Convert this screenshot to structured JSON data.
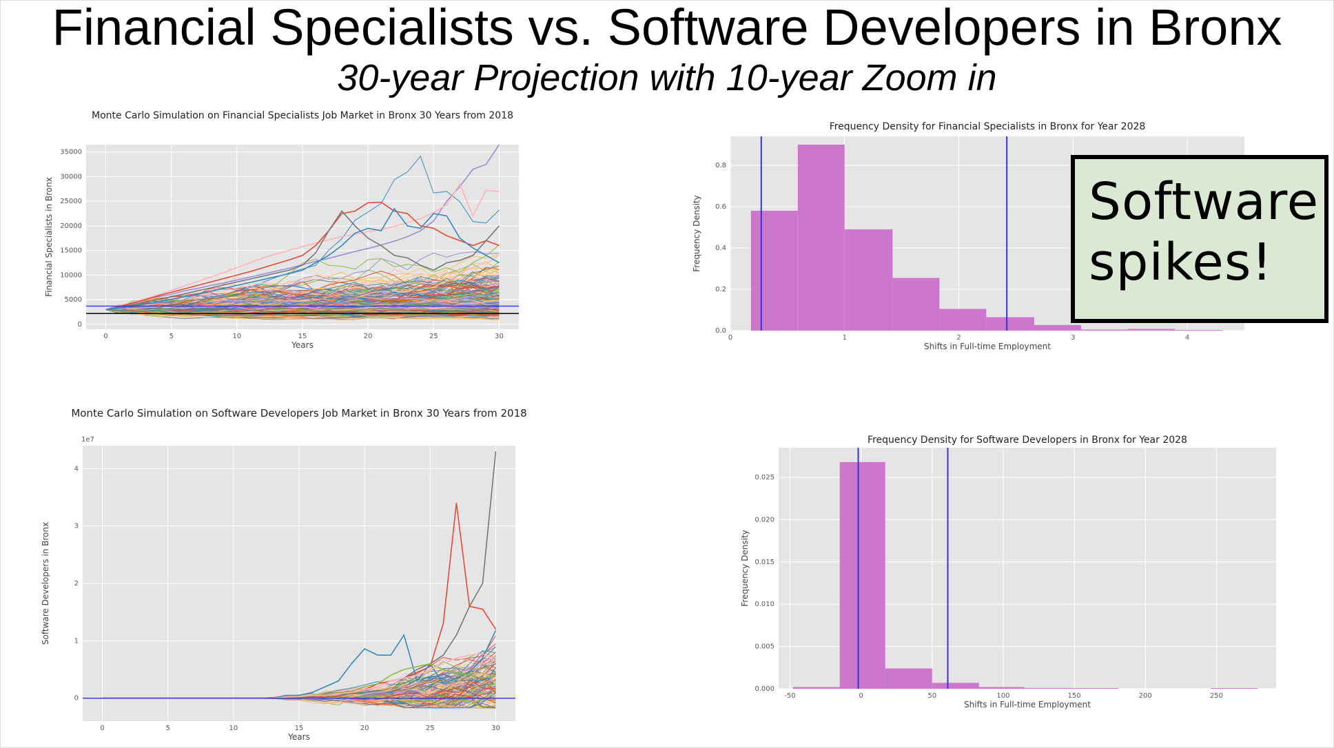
{
  "slide": {
    "title": "Financial Specialists vs. Software Developers in Bronx",
    "subtitle": "30-year Projection with 10-year Zoom in",
    "callout": "Software spikes!"
  },
  "colors": {
    "panel_bg": "#e5e5e5",
    "grid": "#ffffff",
    "hist_fill": "#cc77cc",
    "vline": "#3333dd",
    "callout_bg": "#dbe8d3",
    "series_palette": [
      "#e24a33",
      "#348abd",
      "#988ed5",
      "#777777",
      "#fbc15e",
      "#8eba42",
      "#ffb5b8"
    ]
  },
  "chart_data": [
    {
      "id": "fin-line",
      "type": "line",
      "title": "Monte Carlo Simulation on Financial Specialists Job Market in Bronx 30 Years from 2018",
      "xlabel": "Years",
      "ylabel": "Financial Specialists in Bronx",
      "xlim": [
        -1.5,
        31.5
      ],
      "ylim": [
        -1000,
        36500
      ],
      "xticks": [
        0,
        5,
        10,
        15,
        20,
        25,
        30
      ],
      "yticks": [
        0,
        5000,
        10000,
        15000,
        20000,
        25000,
        30000,
        35000
      ],
      "ytick_labels": [
        "0",
        "5000",
        "10000",
        "15000",
        "20000",
        "25000",
        "30000",
        "35000"
      ],
      "start_value": 3000,
      "simulated_series_count": 200,
      "highlight_series": [
        {
          "color": "#988ed5",
          "values": [
            3000,
            3500,
            4200,
            5000,
            5600,
            6100,
            6800,
            7300,
            7900,
            8400,
            9000,
            9600,
            10200,
            10800,
            11400,
            12100,
            12800,
            13400,
            14100,
            14800,
            15400,
            16100,
            16900,
            17800,
            19000,
            21000,
            25000,
            28000,
            31500,
            32500,
            36500
          ]
        },
        {
          "color": "#ffb5b8",
          "values": [
            3000,
            3700,
            4400,
            5200,
            6000,
            6900,
            7800,
            8700,
            9600,
            10500,
            11500,
            12500,
            13500,
            14300,
            15000,
            15800,
            16500,
            17200,
            17800,
            18300,
            18800,
            19300,
            19900,
            20600,
            21500,
            22700,
            24300,
            28500,
            22000,
            27200,
            27000
          ]
        },
        {
          "color": "#e24a33",
          "values": [
            3000,
            3600,
            4300,
            5000,
            5800,
            6500,
            7200,
            7900,
            8600,
            9300,
            10000,
            10700,
            11500,
            12300,
            13100,
            14000,
            16000,
            19000,
            22500,
            23000,
            24700,
            24800,
            23000,
            22500,
            20000,
            19500,
            18000,
            17000,
            16000,
            17000,
            16000
          ]
        },
        {
          "color": "#777777",
          "values": [
            3000,
            3400,
            3900,
            4400,
            5000,
            5600,
            6200,
            6800,
            7400,
            8000,
            8600,
            9200,
            9800,
            10400,
            11000,
            12000,
            14500,
            19000,
            23000,
            20000,
            17500,
            16000,
            14000,
            13500,
            12000,
            11000,
            12500,
            13000,
            14000,
            17000,
            20000
          ]
        },
        {
          "color": "#348abd",
          "values": [
            3000,
            3300,
            3700,
            4100,
            4600,
            5100,
            5600,
            6100,
            6700,
            7300,
            7900,
            8500,
            9100,
            9700,
            10300,
            11000,
            12500,
            14000,
            16000,
            18500,
            19500,
            19000,
            23500,
            20000,
            19500,
            22500,
            22000,
            17500,
            15500,
            14000,
            12500
          ]
        }
      ],
      "reference_lines": [
        {
          "value": 3700,
          "color": "#3333dd"
        },
        {
          "value": 2200,
          "color": "#000000"
        }
      ]
    },
    {
      "id": "fin-hist",
      "type": "histogram",
      "title": "Frequency Density for Financial Specialists in Bronx for Year 2028",
      "xlabel": "Shifts in Full-time Employment",
      "ylabel": "Frequency Density",
      "xlim": [
        0,
        4.5
      ],
      "ylim": [
        0,
        0.94
      ],
      "xticks": [
        0,
        1,
        2,
        3,
        4
      ],
      "yticks": [
        0.0,
        0.2,
        0.4,
        0.6,
        0.8
      ],
      "ytick_labels": [
        "0.0",
        "0.2",
        "0.4",
        "0.6",
        "0.8"
      ],
      "bins": [
        0.18,
        0.59,
        1.0,
        1.42,
        1.83,
        2.24,
        2.66,
        3.07,
        3.48,
        3.89,
        4.31
      ],
      "values": [
        0.58,
        0.9,
        0.49,
        0.255,
        0.105,
        0.065,
        0.027,
        0.005,
        0.008,
        0.003
      ],
      "vlines": [
        0.27,
        2.42
      ]
    },
    {
      "id": "soft-line",
      "type": "line",
      "title": "Monte Carlo Simulation on Software Developers Job Market in Bronx 30 Years from 2018",
      "xlabel": "Years",
      "ylabel": "Software Developers in Bronx",
      "scale_label": "1e7",
      "xlim": [
        -1.5,
        31.5
      ],
      "ylim": [
        -0.4,
        4.4
      ],
      "xticks": [
        0,
        5,
        10,
        15,
        20,
        25,
        30
      ],
      "yticks": [
        0,
        1,
        2,
        3,
        4
      ],
      "ytick_labels": [
        "0",
        "1",
        "2",
        "3",
        "4"
      ],
      "simulated_series_count": 120,
      "highlight_series": [
        {
          "color": "#777777",
          "values": [
            0,
            0,
            0,
            0,
            0,
            0,
            0,
            0,
            0,
            0,
            0,
            0,
            0,
            0,
            0,
            0.02,
            0.05,
            0.05,
            0.08,
            0.1,
            0.15,
            0.2,
            0.3,
            0.35,
            0.5,
            0.6,
            0.75,
            1.1,
            1.6,
            2.0,
            4.3
          ]
        },
        {
          "color": "#e24a33",
          "values": [
            0,
            0,
            0,
            0,
            0,
            0,
            0,
            0,
            0,
            0,
            0,
            0,
            0,
            0,
            0,
            0.02,
            0.05,
            0.08,
            0.1,
            0.1,
            0.15,
            0.25,
            0.3,
            0.35,
            0.45,
            0.55,
            1.3,
            3.4,
            1.6,
            1.55,
            1.2
          ]
        },
        {
          "color": "#348abd",
          "values": [
            0,
            0,
            0,
            0,
            0,
            0,
            0,
            0,
            0,
            0,
            0,
            0,
            0,
            0,
            0.05,
            0.05,
            0.1,
            0.2,
            0.3,
            0.6,
            0.86,
            0.75,
            0.75,
            1.1,
            0.3,
            0.6,
            0.25,
            0.35,
            0.45,
            0.7,
            1.18
          ]
        },
        {
          "color": "#8eba42",
          "values": [
            0,
            0,
            0,
            0,
            0,
            0,
            0,
            0,
            0,
            0,
            0,
            0,
            0,
            0,
            0.02,
            0.02,
            0.05,
            0.08,
            0.1,
            0.12,
            0.2,
            0.25,
            0.4,
            0.5,
            0.55,
            0.6,
            0.5,
            0.45,
            0.4,
            0.35,
            0.4
          ]
        },
        {
          "color": "#ffb5b8",
          "values": [
            0,
            0,
            0,
            0,
            0,
            0,
            0,
            0,
            0,
            0,
            0,
            0,
            0,
            0,
            0.02,
            0.03,
            0.05,
            0.05,
            0.08,
            0.1,
            0.15,
            0.2,
            0.3,
            0.35,
            0.4,
            0.5,
            0.6,
            0.7,
            0.75,
            0.78,
            0.65
          ]
        }
      ],
      "reference_lines": [
        {
          "value": 0,
          "color": "#3333dd"
        }
      ]
    },
    {
      "id": "soft-hist",
      "type": "histogram",
      "title": "Frequency Density for Software Developers in Bronx for Year 2028",
      "xlabel": "Shifts in Full-time Employment",
      "ylabel": "Frequency Density",
      "xlim": [
        -58,
        292
      ],
      "ylim": [
        0,
        0.0285
      ],
      "xticks": [
        -50,
        0,
        50,
        100,
        150,
        200,
        250
      ],
      "yticks": [
        0.0,
        0.005,
        0.01,
        0.015,
        0.02,
        0.025
      ],
      "ytick_labels": [
        "0.000",
        "0.005",
        "0.010",
        "0.015",
        "0.020",
        "0.025"
      ],
      "bins": [
        -48,
        -15,
        17,
        50,
        83,
        115,
        148,
        181,
        213,
        246,
        279
      ],
      "values": [
        0.0002,
        0.0268,
        0.0024,
        0.0007,
        0.0002,
        0.0001,
        8e-05,
        0.0,
        0.0,
        8e-05
      ],
      "vlines": [
        -2,
        61
      ]
    }
  ]
}
